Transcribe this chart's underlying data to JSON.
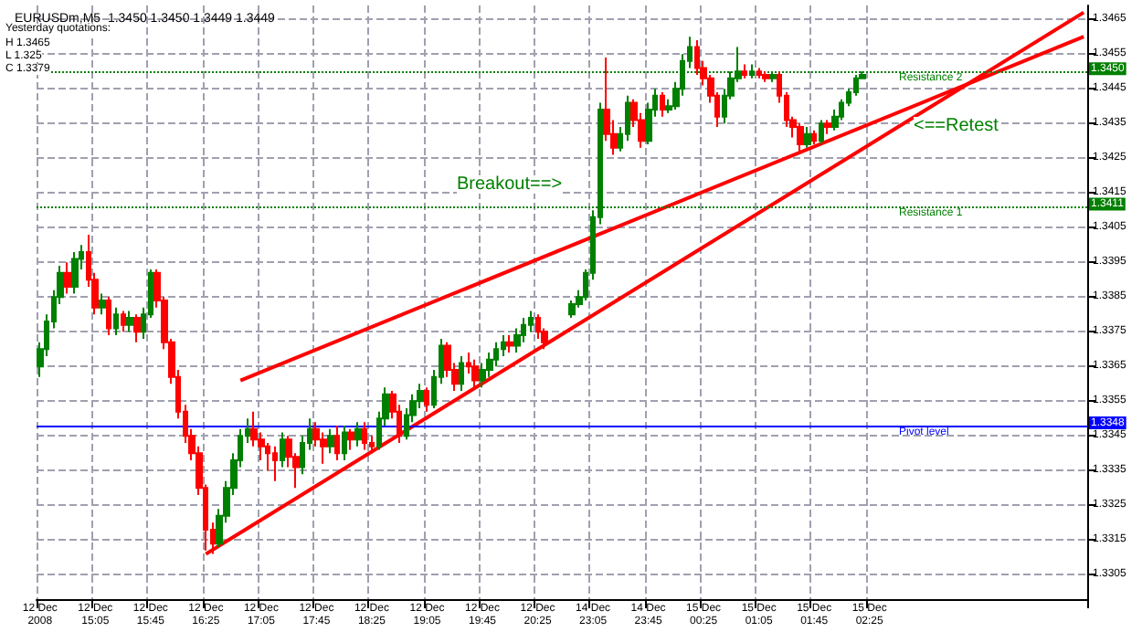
{
  "chart_data": {
    "type": "candlestick",
    "title": "EURUSDm,M5  1.3450 1.3450 1.3449 1.3449",
    "annotations": [
      "Yesterday quotations:",
      "H 1.3465",
      "L 1.325",
      "C 1.3379",
      "Breakout==>",
      "<==Retest",
      {
        "text": "1.3450",
        "y": 1.345
      },
      {
        "text": "1.3411",
        "y": 1.3411
      },
      {
        "text": "1.3348",
        "y": 1.3348
      }
    ],
    "categories": [
      "12 Dec 2008",
      null,
      null,
      null,
      null,
      null,
      null,
      null,
      "12 Dec 15:05",
      null,
      null,
      null,
      null,
      null,
      null,
      null,
      "12 Dec 15:45",
      null,
      null,
      null,
      null,
      null,
      null,
      null,
      "12 Dec 16:25",
      null,
      null,
      null,
      null,
      null,
      null,
      null,
      "12 Dec 17:05",
      null,
      null,
      null,
      null,
      null,
      null,
      null,
      "12 Dec 17:45",
      null,
      null,
      null,
      null,
      null,
      null,
      null,
      "12 Dec 18:25",
      null,
      null,
      null,
      null,
      null,
      null,
      null,
      "12 Dec 19:05",
      null,
      null,
      null,
      null,
      null,
      null,
      null,
      "12 Dec 19:45",
      null,
      null,
      null,
      null,
      null,
      null,
      null,
      "12 Dec 20:25",
      null,
      null,
      null,
      null,
      null,
      null,
      null,
      "14 Dec 23:05",
      null,
      null,
      null,
      null,
      null,
      null,
      null,
      "14 Dec 23:45",
      null,
      null,
      null,
      null,
      null,
      null,
      null,
      "15 Dec 00:25",
      null,
      null,
      null,
      null,
      null,
      null,
      null,
      "15 Dec 01:05",
      null,
      null,
      null,
      null,
      null,
      null,
      null,
      "15 Dec 01:45",
      null,
      null,
      null,
      null,
      null,
      null,
      null,
      "15 Dec 02:25",
      null,
      null,
      null,
      null,
      null,
      null,
      null,
      null,
      null,
      null,
      null,
      null,
      null,
      null,
      null,
      null,
      null,
      null,
      null,
      null,
      null,
      null,
      null,
      null,
      null,
      null,
      null,
      null,
      null,
      null,
      null
    ],
    "colors": [
      "#008000",
      "#008000",
      "#008000",
      "#008000",
      "#ff0000",
      "#008000",
      "#008000",
      "#ff0000",
      "#ff0000",
      "#008000",
      "#ff0000",
      "#008000",
      "#ff0000",
      "#008000",
      "#ff0000",
      "#008000",
      "#008000",
      "#ff0000",
      "#ff0000",
      "#ff0000",
      "#ff0000",
      "#ff0000",
      "#ff0000",
      "#ff0000",
      "#ff0000",
      "#ff0000",
      "#008000",
      "#008000",
      "#008000",
      "#008000",
      "#008000",
      "#ff0000",
      "#ff0000",
      "#ff0000",
      "#ff0000",
      "#008000",
      "#ff0000",
      "#ff0000",
      "#008000",
      "#008000",
      "#ff0000",
      "#ff0000",
      "#008000",
      "#ff0000",
      "#008000",
      "#ff0000",
      "#008000",
      "#ff0000",
      "#ff0000",
      "#008000",
      "#008000",
      "#ff0000",
      "#ff0000",
      "#008000",
      "#008000",
      "#008000",
      "#ff0000",
      "#008000",
      "#008000",
      "#ff0000",
      "#ff0000",
      "#008000",
      "#ff0000",
      "#ff0000",
      "#008000",
      "#008000",
      "#008000",
      "#008000",
      "#ff0000",
      "#008000",
      "#008000",
      "#008000",
      "#ff0000",
      "#ff0000",
      null,
      null,
      null,
      "#008000",
      "#008000",
      "#008000",
      "#008000",
      "#008000",
      "#ff0000",
      "#ff0000",
      "#008000",
      "#008000",
      "#ff0000",
      "#ff0000",
      "#008000",
      "#008000",
      "#ff0000",
      "#008000",
      "#008000",
      "#008000",
      "#008000",
      "#ff0000",
      "#ff0000",
      "#ff0000",
      "#ff0000",
      "#008000",
      "#008000",
      "#008000",
      "#ff0000",
      "#008000",
      "#ff0000",
      "#ff0000",
      "#008000",
      "#ff0000",
      "#ff0000",
      "#ff0000",
      "#ff0000",
      "#008000",
      "#ff0000",
      "#008000",
      "#ff0000",
      "#008000",
      "#008000",
      "#008000",
      "#008000",
      "#008000",
      null,
      null,
      null,
      null,
      null,
      null,
      null,
      null,
      null,
      null,
      null,
      null,
      null,
      null,
      null,
      null,
      null,
      null,
      null,
      null,
      null,
      null,
      null,
      null,
      null,
      null,
      null,
      null,
      null,
      null,
      null,
      null
    ],
    "ohlc": [
      [
        1.3365,
        1.3372,
        1.3362,
        1.337
      ],
      [
        1.337,
        1.338,
        1.3368,
        1.3378
      ],
      [
        1.3378,
        1.3387,
        1.3376,
        1.3385
      ],
      [
        1.3385,
        1.3394,
        1.3383,
        1.3392
      ],
      [
        1.3392,
        1.3395,
        1.3386,
        1.3388
      ],
      [
        1.3388,
        1.3398,
        1.3386,
        1.3396
      ],
      [
        1.3396,
        1.34,
        1.3393,
        1.3398
      ],
      [
        1.3398,
        1.3403,
        1.3388,
        1.339
      ],
      [
        1.339,
        1.3392,
        1.338,
        1.3382
      ],
      [
        1.3382,
        1.3386,
        1.338,
        1.3384
      ],
      [
        1.3384,
        1.3385,
        1.3374,
        1.3376
      ],
      [
        1.3376,
        1.3382,
        1.3374,
        1.338
      ],
      [
        1.338,
        1.3381,
        1.3375,
        1.3377
      ],
      [
        1.3377,
        1.3381,
        1.3375,
        1.3379
      ],
      [
        1.3379,
        1.338,
        1.3372,
        1.3375
      ],
      [
        1.3375,
        1.3382,
        1.3373,
        1.338
      ],
      [
        1.338,
        1.3393,
        1.3379,
        1.3392
      ],
      [
        1.3392,
        1.3393,
        1.3382,
        1.3384
      ],
      [
        1.3384,
        1.3385,
        1.337,
        1.3372
      ],
      [
        1.3372,
        1.3373,
        1.336,
        1.3362
      ],
      [
        1.3362,
        1.3364,
        1.335,
        1.3352
      ],
      [
        1.3352,
        1.3354,
        1.3343,
        1.3345
      ],
      [
        1.3345,
        1.3347,
        1.3338,
        1.334
      ],
      [
        1.334,
        1.3342,
        1.3328,
        1.333
      ],
      [
        1.333,
        1.3331,
        1.3312,
        1.3318
      ],
      [
        1.3318,
        1.332,
        1.3311,
        1.3314
      ],
      [
        1.3314,
        1.3324,
        1.3313,
        1.3322
      ],
      [
        1.3322,
        1.3332,
        1.332,
        1.333
      ],
      [
        1.333,
        1.334,
        1.3328,
        1.3338
      ],
      [
        1.3338,
        1.3347,
        1.3336,
        1.3345
      ],
      [
        1.3345,
        1.335,
        1.3343,
        1.3347
      ],
      [
        1.3347,
        1.3352,
        1.3342,
        1.3344
      ],
      [
        1.3344,
        1.3346,
        1.3338,
        1.3342
      ],
      [
        1.3342,
        1.3343,
        1.3335,
        1.334
      ],
      [
        1.334,
        1.3342,
        1.3332,
        1.3338
      ],
      [
        1.3338,
        1.3346,
        1.3336,
        1.3344
      ],
      [
        1.3344,
        1.3345,
        1.3336,
        1.3339
      ],
      [
        1.3339,
        1.334,
        1.333,
        1.3336
      ],
      [
        1.3336,
        1.3345,
        1.3334,
        1.3343
      ],
      [
        1.3343,
        1.335,
        1.3341,
        1.3347
      ],
      [
        1.3347,
        1.3349,
        1.3342,
        1.3344
      ],
      [
        1.3344,
        1.3346,
        1.3337,
        1.3342
      ],
      [
        1.3342,
        1.3347,
        1.334,
        1.3345
      ],
      [
        1.3345,
        1.3348,
        1.3338,
        1.334
      ],
      [
        1.334,
        1.3348,
        1.3338,
        1.3346
      ],
      [
        1.3346,
        1.3347,
        1.3341,
        1.3344
      ],
      [
        1.3344,
        1.3349,
        1.3342,
        1.3347
      ],
      [
        1.3347,
        1.3349,
        1.3341,
        1.3343
      ],
      [
        1.3343,
        1.3345,
        1.334,
        1.3342
      ],
      [
        1.3342,
        1.3352,
        1.3341,
        1.335
      ],
      [
        1.335,
        1.3359,
        1.3348,
        1.3357
      ],
      [
        1.3357,
        1.3358,
        1.335,
        1.3352
      ],
      [
        1.3352,
        1.3354,
        1.3343,
        1.3345
      ],
      [
        1.3345,
        1.3353,
        1.3344,
        1.3351
      ],
      [
        1.3351,
        1.3357,
        1.3349,
        1.3355
      ],
      [
        1.3355,
        1.336,
        1.3353,
        1.3358
      ],
      [
        1.3358,
        1.3359,
        1.3352,
        1.3354
      ],
      [
        1.3354,
        1.3364,
        1.3353,
        1.3362
      ],
      [
        1.3362,
        1.3373,
        1.336,
        1.3371
      ],
      [
        1.3371,
        1.3372,
        1.3362,
        1.3364
      ],
      [
        1.3364,
        1.3366,
        1.3358,
        1.336
      ],
      [
        1.336,
        1.3368,
        1.3358,
        1.3366
      ],
      [
        1.3366,
        1.3369,
        1.3363,
        1.3365
      ],
      [
        1.3365,
        1.3367,
        1.3359,
        1.3361
      ],
      [
        1.3361,
        1.3366,
        1.3359,
        1.3364
      ],
      [
        1.3364,
        1.3369,
        1.3362,
        1.3367
      ],
      [
        1.3367,
        1.3372,
        1.3365,
        1.337
      ],
      [
        1.337,
        1.3374,
        1.3368,
        1.3372
      ],
      [
        1.3372,
        1.3374,
        1.3369,
        1.3371
      ],
      [
        1.3371,
        1.3376,
        1.3369,
        1.3374
      ],
      [
        1.3374,
        1.3379,
        1.3372,
        1.3377
      ],
      [
        1.3377,
        1.3381,
        1.3375,
        1.3379
      ],
      [
        1.3379,
        1.338,
        1.3373,
        1.3375
      ],
      [
        1.3375,
        1.3376,
        1.337,
        1.3372
      ],
      null,
      null,
      null,
      [
        1.338,
        1.3384,
        1.3379,
        1.3383
      ],
      [
        1.3383,
        1.3387,
        1.3382,
        1.3385
      ],
      [
        1.3385,
        1.3393,
        1.3384,
        1.3392
      ],
      [
        1.3392,
        1.341,
        1.339,
        1.3408
      ],
      [
        1.3408,
        1.3441,
        1.3406,
        1.3439
      ],
      [
        1.3439,
        1.3454,
        1.343,
        1.3432
      ],
      [
        1.3432,
        1.3436,
        1.3426,
        1.3428
      ],
      [
        1.3428,
        1.3434,
        1.3427,
        1.3432
      ],
      [
        1.3432,
        1.3443,
        1.343,
        1.3441
      ],
      [
        1.3441,
        1.3442,
        1.3434,
        1.3436
      ],
      [
        1.3436,
        1.3438,
        1.3428,
        1.343
      ],
      [
        1.343,
        1.3441,
        1.3429,
        1.3439
      ],
      [
        1.3439,
        1.3445,
        1.3437,
        1.3443
      ],
      [
        1.3443,
        1.3444,
        1.3437,
        1.3439
      ],
      [
        1.3439,
        1.3442,
        1.3438,
        1.344
      ],
      [
        1.344,
        1.3447,
        1.3439,
        1.3445
      ],
      [
        1.3445,
        1.3455,
        1.3443,
        1.3453
      ],
      [
        1.3453,
        1.346,
        1.3451,
        1.3457
      ],
      [
        1.3457,
        1.3459,
        1.3449,
        1.3451
      ],
      [
        1.3451,
        1.3453,
        1.3446,
        1.3448
      ],
      [
        1.3448,
        1.3449,
        1.3441,
        1.3443
      ],
      [
        1.3443,
        1.3444,
        1.3434,
        1.3437
      ],
      [
        1.3437,
        1.3445,
        1.3435,
        1.3443
      ],
      [
        1.3443,
        1.345,
        1.3442,
        1.3448
      ],
      [
        1.3448,
        1.3457,
        1.3447,
        1.345
      ],
      [
        1.345,
        1.3452,
        1.3448,
        1.3449
      ],
      [
        1.3449,
        1.3452,
        1.3448,
        1.345
      ],
      [
        1.345,
        1.3451,
        1.3448,
        1.3449
      ],
      [
        1.3449,
        1.345,
        1.3447,
        1.3448
      ],
      [
        1.3448,
        1.345,
        1.3447,
        1.3449
      ],
      [
        1.3449,
        1.345,
        1.3441,
        1.3443
      ],
      [
        1.3443,
        1.3444,
        1.3434,
        1.3436
      ],
      [
        1.3436,
        1.3437,
        1.3431,
        1.3434
      ],
      [
        1.3434,
        1.3435,
        1.3427,
        1.3429
      ],
      [
        1.3429,
        1.3434,
        1.3428,
        1.3432
      ],
      [
        1.3432,
        1.3433,
        1.3429,
        1.343
      ],
      [
        1.343,
        1.3436,
        1.3429,
        1.3435
      ],
      [
        1.3435,
        1.3436,
        1.3432,
        1.3434
      ],
      [
        1.3434,
        1.3439,
        1.3433,
        1.3437
      ],
      [
        1.3437,
        1.3442,
        1.3436,
        1.3441
      ],
      [
        1.3441,
        1.3445,
        1.344,
        1.3444
      ],
      [
        1.3444,
        1.3449,
        1.3443,
        1.3448
      ],
      [
        1.3448,
        1.345,
        1.3448,
        1.3449
      ],
      null,
      null,
      null,
      null,
      null,
      null,
      null,
      null,
      null,
      null,
      null,
      null,
      null,
      null,
      null,
      null,
      null,
      null,
      null,
      null,
      null,
      null,
      null,
      null,
      null,
      null,
      null,
      null,
      null,
      null,
      null,
      null
    ],
    "series": [
      {
        "type": "line",
        "color": "#ff0000",
        "values": [
          null,
          null,
          null,
          null,
          null,
          null,
          null,
          null,
          null,
          null,
          null,
          null,
          null,
          null,
          null,
          null,
          null,
          null,
          null,
          null,
          null,
          null,
          null,
          null,
          1.3311,
          null,
          null,
          null,
          null,
          null,
          null,
          null,
          null,
          null,
          null,
          null,
          null,
          null,
          null,
          null,
          null,
          null,
          null,
          null,
          null,
          null,
          null,
          null,
          null,
          null,
          null,
          null,
          null,
          null,
          null,
          null,
          null,
          null,
          null,
          null,
          null,
          null,
          null,
          null,
          null,
          null,
          null,
          null,
          null,
          null,
          null,
          null,
          null,
          null,
          null,
          null,
          null,
          null,
          null,
          null,
          null,
          null,
          null,
          null,
          null,
          null,
          null,
          null,
          null,
          null,
          null,
          null,
          null,
          null,
          null,
          null,
          null,
          null,
          null,
          null,
          null,
          null,
          null,
          null,
          null,
          null,
          null,
          null,
          null,
          null,
          null,
          null,
          null,
          null,
          null,
          null,
          null,
          null,
          null,
          null,
          null,
          null,
          null,
          null,
          null,
          null,
          null,
          null,
          null,
          null,
          null,
          null,
          null,
          null,
          null,
          null,
          null,
          null,
          null,
          null,
          null,
          null,
          null,
          null,
          null,
          null,
          null,
          null,
          null,
          null,
          null,
          1.3467
        ]
      },
      {
        "type": "line",
        "color": "#ff0000",
        "values": [
          null,
          null,
          null,
          null,
          null,
          null,
          null,
          null,
          null,
          null,
          null,
          null,
          null,
          null,
          null,
          null,
          null,
          null,
          null,
          null,
          null,
          null,
          null,
          null,
          null,
          null,
          null,
          null,
          null,
          1.3361,
          null,
          null,
          null,
          null,
          null,
          null,
          null,
          null,
          null,
          null,
          null,
          null,
          null,
          null,
          null,
          null,
          null,
          null,
          null,
          null,
          null,
          null,
          null,
          null,
          null,
          null,
          null,
          null,
          null,
          null,
          null,
          null,
          null,
          null,
          null,
          null,
          null,
          null,
          null,
          null,
          null,
          null,
          null,
          null,
          null,
          null,
          null,
          null,
          null,
          null,
          null,
          null,
          null,
          null,
          null,
          null,
          null,
          null,
          null,
          null,
          null,
          null,
          null,
          null,
          null,
          null,
          null,
          null,
          null,
          null,
          null,
          null,
          null,
          null,
          null,
          null,
          null,
          null,
          null,
          null,
          null,
          null,
          null,
          null,
          null,
          null,
          null,
          null,
          null,
          null,
          null,
          null,
          null,
          null,
          null,
          null,
          null,
          null,
          null,
          null,
          null,
          null,
          null,
          null,
          null,
          null,
          null,
          null,
          null,
          null,
          null,
          null,
          null,
          null,
          null,
          null,
          null,
          null,
          null,
          null,
          null,
          1.346
        ]
      }
    ],
    "ref_lines": [
      {
        "axis": "y",
        "value": 1.345,
        "label": "Resistance 2",
        "color": "#008000",
        "line_style": "dotted"
      },
      {
        "axis": "y",
        "value": 1.3411,
        "label": "Resistance 1",
        "color": "#008000",
        "line_style": "dotted"
      },
      {
        "axis": "y",
        "value": 1.3348,
        "label": "Pivot level",
        "color": "#0000ff",
        "line_style": "solid"
      }
    ],
    "ylim": [
      1.3298,
      1.3469
    ],
    "yticks": [
      1.3465,
      1.3455,
      1.3445,
      1.3435,
      1.3425,
      1.3415,
      1.3405,
      1.3395,
      1.3385,
      1.3375,
      1.3365,
      1.3355,
      1.3345,
      1.3335,
      1.3325,
      1.3315,
      1.3305
    ],
    "grid": true
  }
}
